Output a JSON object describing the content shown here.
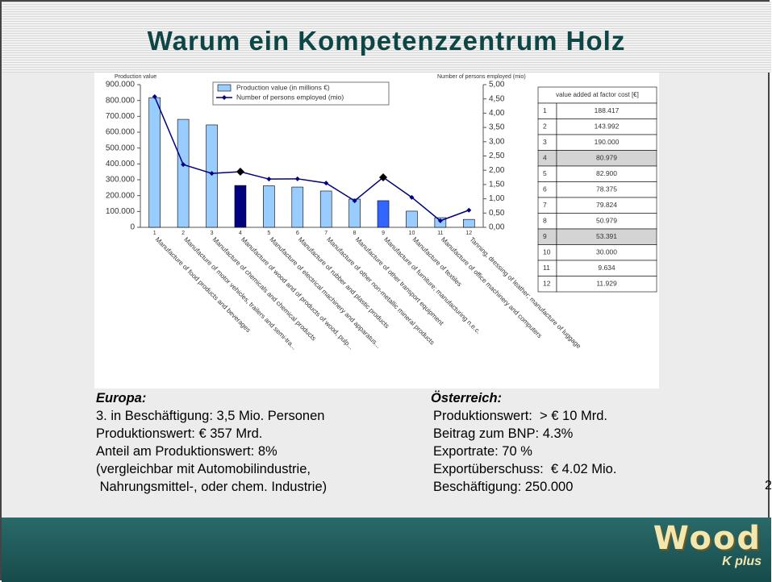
{
  "title": "Warum ein Kompetenzzentrum Holz",
  "chart_data": {
    "type": "bar_line",
    "ylabel": "Production value",
    "y2label": "Number of persons employed (mio)",
    "categories": [
      "1",
      "2",
      "3",
      "4",
      "5",
      "6",
      "7",
      "8",
      "9",
      "10",
      "11",
      "12"
    ],
    "category_names": [
      "Manufacture of food products and beverages",
      "Manufacture of motor vehicles, trailers and semi-tra...",
      "Manufacture of chemicals and chemical products",
      "Manufacture of wood and of products of wood, pulp...",
      "Manufacture of electrical machinery and apparatus...",
      "Manufacture of rubber and plastic products",
      "Manufacture of other non-metallic mineral products",
      "Manufacture of other transport equipment",
      "Manufacture of furniture; manufacturing n.e.c.",
      "Manufacture of textiles",
      "Manufacture of office machinery and computers",
      "Tanning, dressing of leather; manufacture of luggage"
    ],
    "series": [
      {
        "name": "Production value (in millions €)",
        "type": "bar",
        "color": "#99ccff",
        "colors": [
          "#99ccff",
          "#99ccff",
          "#99ccff",
          "#000080",
          "#99ccff",
          "#99ccff",
          "#99ccff",
          "#99ccff",
          "#3366ff",
          "#99ccff",
          "#99ccff",
          "#99ccff"
        ],
        "values": [
          818000,
          681000,
          646000,
          264000,
          262000,
          254000,
          229000,
          178000,
          168000,
          102000,
          61000,
          50000
        ]
      },
      {
        "name": "Number of persons employed (mio)",
        "type": "line",
        "axis": "y2",
        "color": "#000080",
        "point_colors": [
          "#000080",
          "#000080",
          "#000080",
          "#000000",
          "#000080",
          "#000080",
          "#000080",
          "#000080",
          "#000000",
          "#000080",
          "#000080",
          "#000080"
        ],
        "values": [
          4.58,
          2.2,
          1.89,
          1.95,
          1.69,
          1.7,
          1.55,
          0.93,
          1.75,
          1.05,
          0.23,
          0.6
        ]
      }
    ],
    "ylim": [
      0,
      900000
    ],
    "yticks": [
      0,
      {
        "value": 100000,
        "label": "100.000"
      },
      {
        "value": 200000,
        "label": "200.000"
      },
      {
        "value": 300000,
        "label": "300.000"
      },
      {
        "value": 400000,
        "label": "400.000"
      },
      {
        "value": 500000,
        "label": "500.000"
      },
      {
        "value": 600000,
        "label": "600.000"
      },
      {
        "value": 700000,
        "label": "700.000"
      },
      {
        "value": 800000,
        "label": "800.000"
      },
      {
        "value": 900000,
        "label": "900.000"
      }
    ],
    "y2lim": [
      0,
      5
    ],
    "y2ticks": [
      {
        "value": 0,
        "label": "0,00"
      },
      {
        "value": 0.5,
        "label": "0,50"
      },
      {
        "value": 1,
        "label": "1,00"
      },
      {
        "value": 1.5,
        "label": "1,50"
      },
      {
        "value": 2,
        "label": "2,00"
      },
      {
        "value": 2.5,
        "label": "2,50"
      },
      {
        "value": 3,
        "label": "3,00"
      },
      {
        "value": 3.5,
        "label": "3,50"
      },
      {
        "value": 4,
        "label": "4,00"
      },
      {
        "value": 4.5,
        "label": "4,50"
      },
      {
        "value": 5,
        "label": "5,00"
      }
    ],
    "legend": "top"
  },
  "table": {
    "header": "value added at factor cost [€]",
    "highlighted_rows": [
      "4",
      "9"
    ],
    "rows": [
      [
        "1",
        "188.417"
      ],
      [
        "2",
        "143.992"
      ],
      [
        "3",
        "190.000"
      ],
      [
        "4",
        "80.979"
      ],
      [
        "5",
        "82.900"
      ],
      [
        "6",
        "78.375"
      ],
      [
        "7",
        "79.824"
      ],
      [
        "8",
        "50.979"
      ],
      [
        "9",
        "53.391"
      ],
      [
        "10",
        "30.000"
      ],
      [
        "11",
        "9.634"
      ],
      [
        "12",
        "11.929"
      ]
    ]
  },
  "europa": {
    "heading": "Europa:",
    "lines": [
      "3. in Beschäftigung: 3,5 Mio. Personen",
      "Produktionswert: € 357 Mrd.",
      "Anteil am Produktionswert: 8%",
      "(vergleichbar mit Automobilindustrie,",
      " Nahrungsmittel-, oder chem. Industrie)"
    ]
  },
  "oesterreich": {
    "heading": "Österreich:",
    "lines": [
      "Produktionswert:  > € 10 Mrd.",
      "Beitrag zum BNP: 4.3%",
      "Exportrate: 70 %",
      "Exportüberschuss:  € 4.02 Mio.",
      "Beschäftigung: 250.000"
    ]
  },
  "page_number": "2",
  "logo": {
    "main": "Wood",
    "sub": "K plus"
  }
}
